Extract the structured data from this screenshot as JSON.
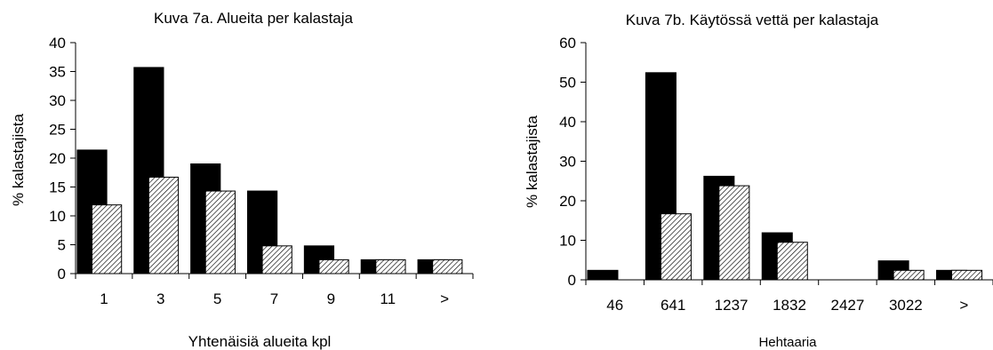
{
  "chart_data": [
    {
      "type": "bar",
      "title": "Kuva 7a. Alueita per kalastaja",
      "xlabel": "Yhtenäisiä alueita kpl",
      "ylabel": "% kalastajista",
      "categories": [
        "1",
        "3",
        "5",
        "7",
        "9",
        "11",
        ">"
      ],
      "ylim": [
        0,
        40
      ],
      "yticks": [
        0,
        5,
        10,
        15,
        20,
        25,
        30,
        35,
        40
      ],
      "series": [
        {
          "color": "#000000",
          "style": "solid",
          "values": [
            21.4,
            35.7,
            19.0,
            14.3,
            4.8,
            2.4,
            2.4
          ]
        },
        {
          "color": "#ffffff",
          "style": "hatched",
          "values": [
            11.9,
            16.7,
            14.3,
            4.8,
            2.4,
            2.4,
            2.4
          ]
        }
      ]
    },
    {
      "type": "bar",
      "title": "Kuva 7b. Käytössä vettä per kalastaja",
      "xlabel": "Hehtaaria",
      "ylabel": "% kalastajista",
      "categories": [
        "46",
        "641",
        "1237",
        "1832",
        "2427",
        "3022",
        ">"
      ],
      "ylim": [
        0,
        60
      ],
      "yticks": [
        0,
        10,
        20,
        30,
        40,
        50,
        60
      ],
      "series": [
        {
          "color": "#000000",
          "style": "solid",
          "values": [
            2.4,
            52.4,
            26.2,
            11.9,
            0,
            4.8,
            2.4
          ]
        },
        {
          "color": "#ffffff",
          "style": "hatched",
          "values": [
            0,
            16.7,
            23.8,
            9.5,
            0,
            2.4,
            2.4
          ]
        }
      ]
    }
  ]
}
